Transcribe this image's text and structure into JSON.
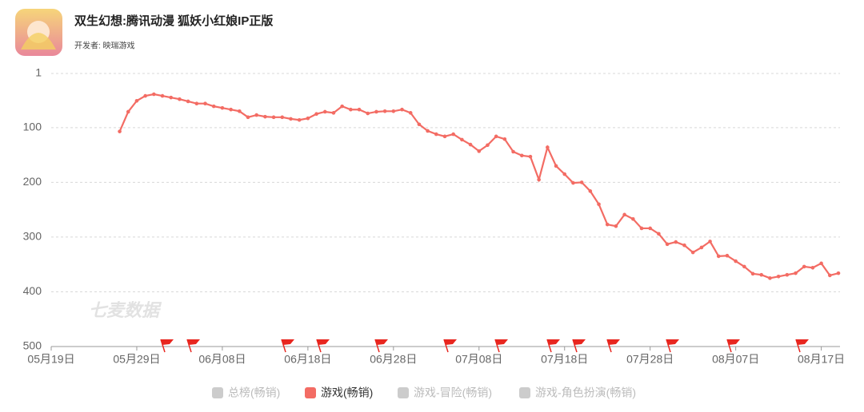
{
  "header": {
    "title": "双生幻想:腾讯动漫 狐妖小红娘IP正版",
    "developer": "开发者: 映瑞游戏"
  },
  "chart_data": {
    "type": "line",
    "watermark": "七麦数据",
    "categories": [
      "05月19日",
      null,
      null,
      null,
      null,
      null,
      null,
      null,
      null,
      null,
      "05月29日",
      null,
      null,
      null,
      null,
      null,
      null,
      null,
      null,
      null,
      "06月08日",
      null,
      null,
      null,
      null,
      null,
      null,
      null,
      null,
      null,
      "06月18日",
      null,
      null,
      null,
      null,
      null,
      null,
      null,
      null,
      null,
      "06月28日",
      null,
      null,
      null,
      null,
      null,
      null,
      null,
      null,
      null,
      "07月08日",
      null,
      null,
      null,
      null,
      null,
      null,
      null,
      null,
      null,
      "07月18日",
      null,
      null,
      null,
      null,
      null,
      null,
      null,
      null,
      null,
      "07月28日",
      null,
      null,
      null,
      null,
      null,
      null,
      null,
      null,
      null,
      "08月07日",
      null,
      null,
      null,
      null,
      null,
      null,
      null,
      null,
      null,
      "08月17日",
      null,
      null
    ],
    "series": [
      {
        "name": "总榜(畅销)",
        "color": "#cccccc",
        "visible": false
      },
      {
        "name": "游戏(畅销)",
        "color": "#f36c64",
        "visible": true,
        "values": [
          null,
          null,
          null,
          null,
          null,
          null,
          null,
          null,
          107,
          71,
          51,
          42,
          39,
          42,
          45,
          48,
          52,
          56,
          56,
          61,
          64,
          67,
          70,
          81,
          77,
          80,
          81,
          81,
          84,
          86,
          83,
          75,
          71,
          73,
          61,
          67,
          67,
          74,
          71,
          70,
          70,
          67,
          73,
          94,
          106,
          112,
          116,
          112,
          122,
          131,
          143,
          132,
          116,
          121,
          144,
          151,
          153,
          195,
          136,
          170,
          185,
          201,
          200,
          216,
          240,
          277,
          280,
          259,
          267,
          284,
          284,
          294,
          313,
          309,
          315,
          328,
          319,
          308,
          335,
          334,
          344,
          354,
          367,
          369,
          375,
          372,
          369,
          366,
          354,
          356,
          348,
          370,
          366
        ]
      },
      {
        "name": "游戏-冒险(畅销)",
        "color": "#cccccc",
        "visible": false
      },
      {
        "name": "游戏-角色扮演(畅销)",
        "color": "#cccccc",
        "visible": false
      }
    ],
    "ylim": [
      1,
      500
    ],
    "y_inverted": true,
    "yticks": [
      1,
      100,
      200,
      300,
      400,
      500
    ],
    "grid": true
  }
}
